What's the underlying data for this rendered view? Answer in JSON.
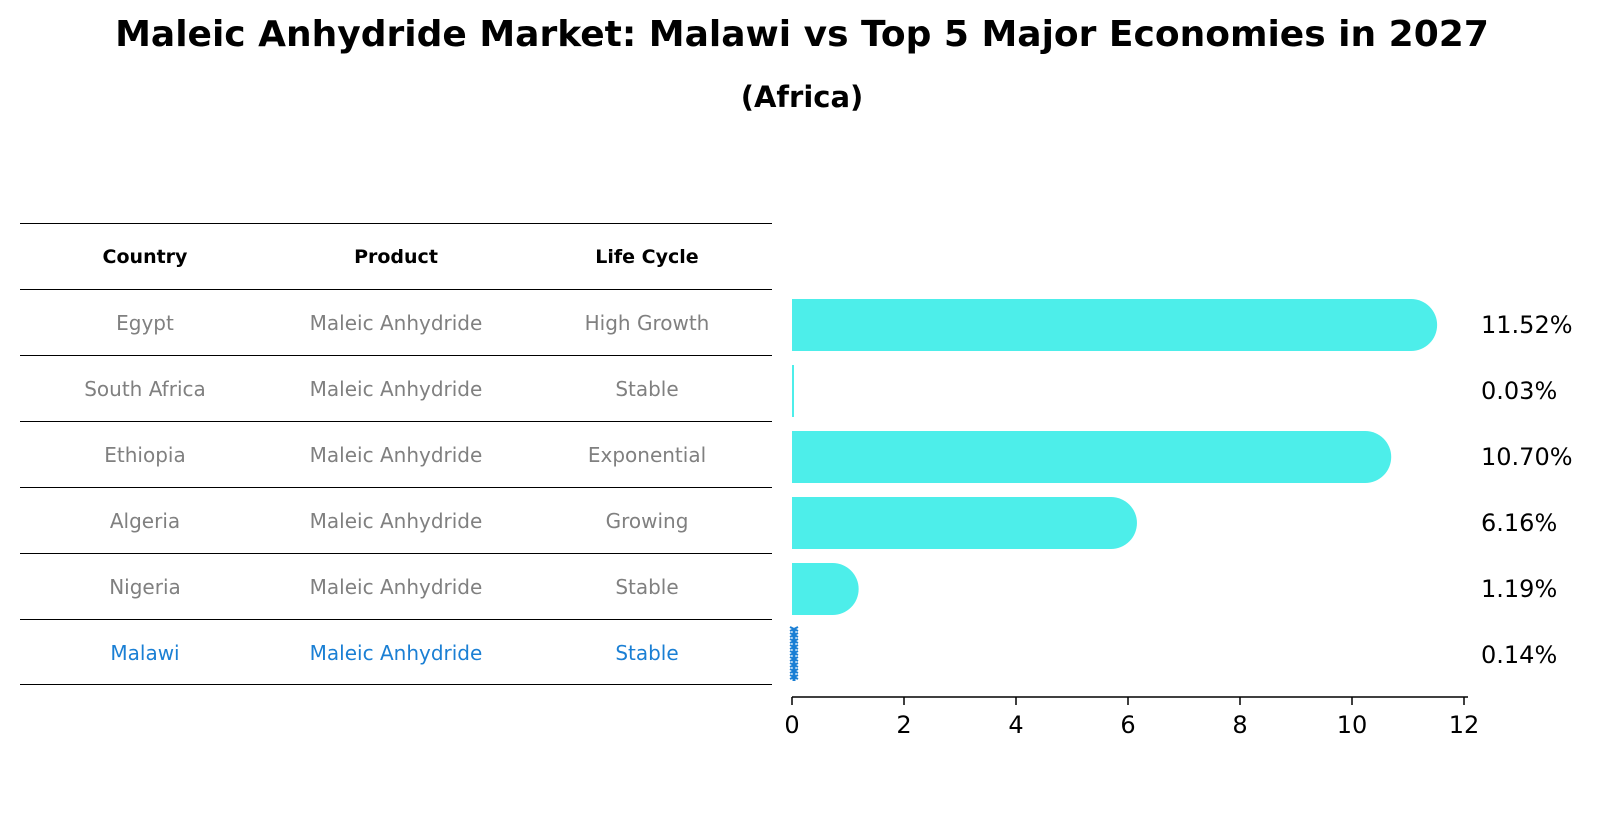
{
  "title": "Maleic Anhydride Market: Malawi vs Top 5 Major Economies in 2027",
  "subtitle": "(Africa)",
  "table": {
    "headers": [
      "Country",
      "Product",
      "Life Cycle"
    ],
    "rows": [
      {
        "country": "Egypt",
        "product": "Maleic Anhydride",
        "life_cycle": "High Growth"
      },
      {
        "country": "South Africa",
        "product": "Maleic Anhydride",
        "life_cycle": "Stable"
      },
      {
        "country": "Ethiopia",
        "product": "Maleic Anhydride",
        "life_cycle": "Exponential"
      },
      {
        "country": "Algeria",
        "product": "Maleic Anhydride",
        "life_cycle": "Growing"
      },
      {
        "country": "Nigeria",
        "product": "Maleic Anhydride",
        "life_cycle": "Stable"
      },
      {
        "country": "Malawi",
        "product": "Maleic Anhydride",
        "life_cycle": "Stable"
      }
    ]
  },
  "colors": {
    "bar": "#4deeea",
    "highlight": "#1a7fd4",
    "muted_text": "#808080"
  },
  "chart_data": {
    "type": "bar",
    "orientation": "horizontal",
    "categories": [
      "Egypt",
      "South Africa",
      "Ethiopia",
      "Algeria",
      "Nigeria",
      "Malawi"
    ],
    "values": [
      11.52,
      0.03,
      10.7,
      6.16,
      1.19,
      0.14
    ],
    "labels": [
      "11.52%",
      "0.03%",
      "10.70%",
      "6.16%",
      "1.19%",
      "0.14%"
    ],
    "highlight": "Malawi",
    "xlim": [
      0,
      12
    ],
    "xticks": [
      0,
      2,
      4,
      6,
      8,
      10,
      12
    ],
    "xlabel": "",
    "ylabel": "",
    "grid": false
  }
}
